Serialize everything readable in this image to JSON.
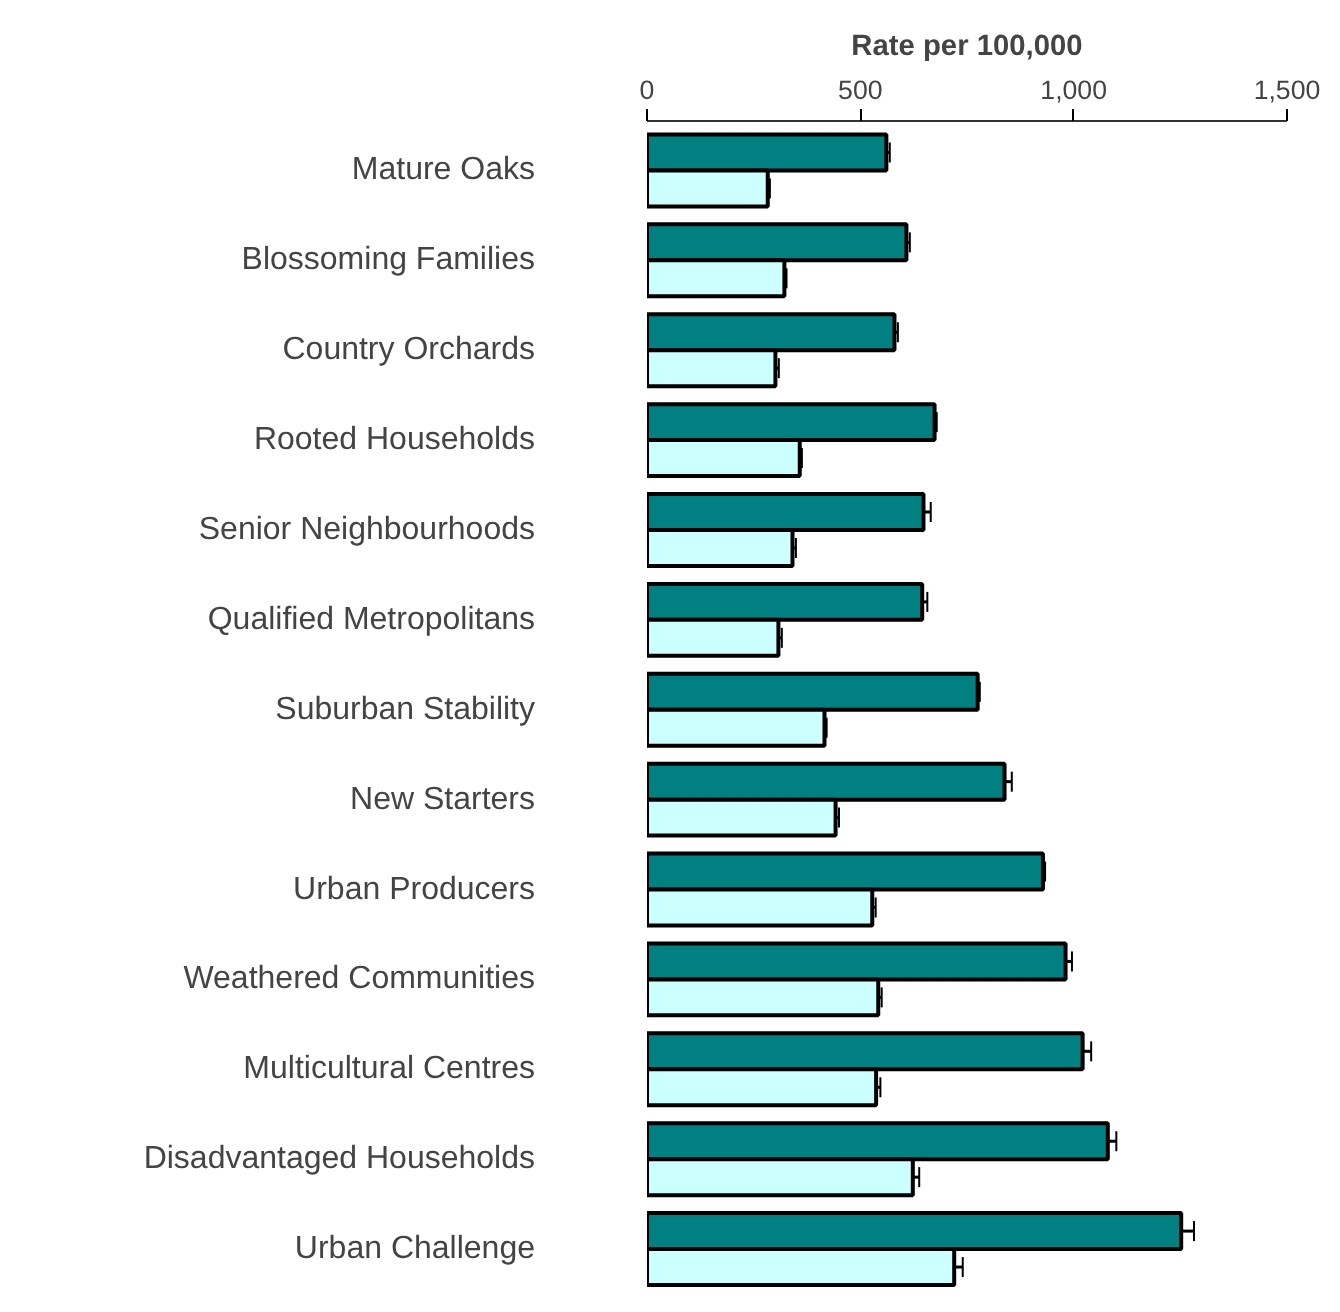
{
  "chart_data": {
    "type": "bar",
    "orientation": "horizontal",
    "xlabel": "Rate per 100,000",
    "categories": [
      "Mature Oaks",
      "Blossoming Families",
      "Country Orchards",
      "Rooted Households",
      "Senior Neighbourhoods",
      "Qualified Metropolitans",
      "Suburban Stability",
      "New Starters",
      "Urban Producers",
      "Weathered Communities",
      "Multicultural Centres",
      "Disadvantaged Households",
      "Urban Challenge"
    ],
    "series": [
      {
        "color": "#008080",
        "values": [
          561,
          608,
          580,
          674,
          648,
          645,
          775,
          838,
          928,
          981,
          1021,
          1080,
          1252
        ],
        "errors": [
          8,
          8,
          8,
          5,
          17,
          12,
          5,
          17,
          5,
          15,
          20,
          20,
          30
        ]
      },
      {
        "color": "#ccffff",
        "values": [
          283,
          322,
          301,
          358,
          341,
          308,
          416,
          442,
          528,
          542,
          537,
          623,
          720
        ],
        "errors": [
          5,
          5,
          8,
          5,
          8,
          8,
          5,
          8,
          8,
          8,
          10,
          15,
          20
        ]
      }
    ],
    "xlim": [
      0,
      1500
    ],
    "xticks": [
      0,
      {
        "value": 500,
        "label": "500"
      },
      {
        "value": 1000,
        "label": "1,000"
      },
      {
        "value": 1500,
        "label": "1,500"
      }
    ],
    "grid": false
  }
}
